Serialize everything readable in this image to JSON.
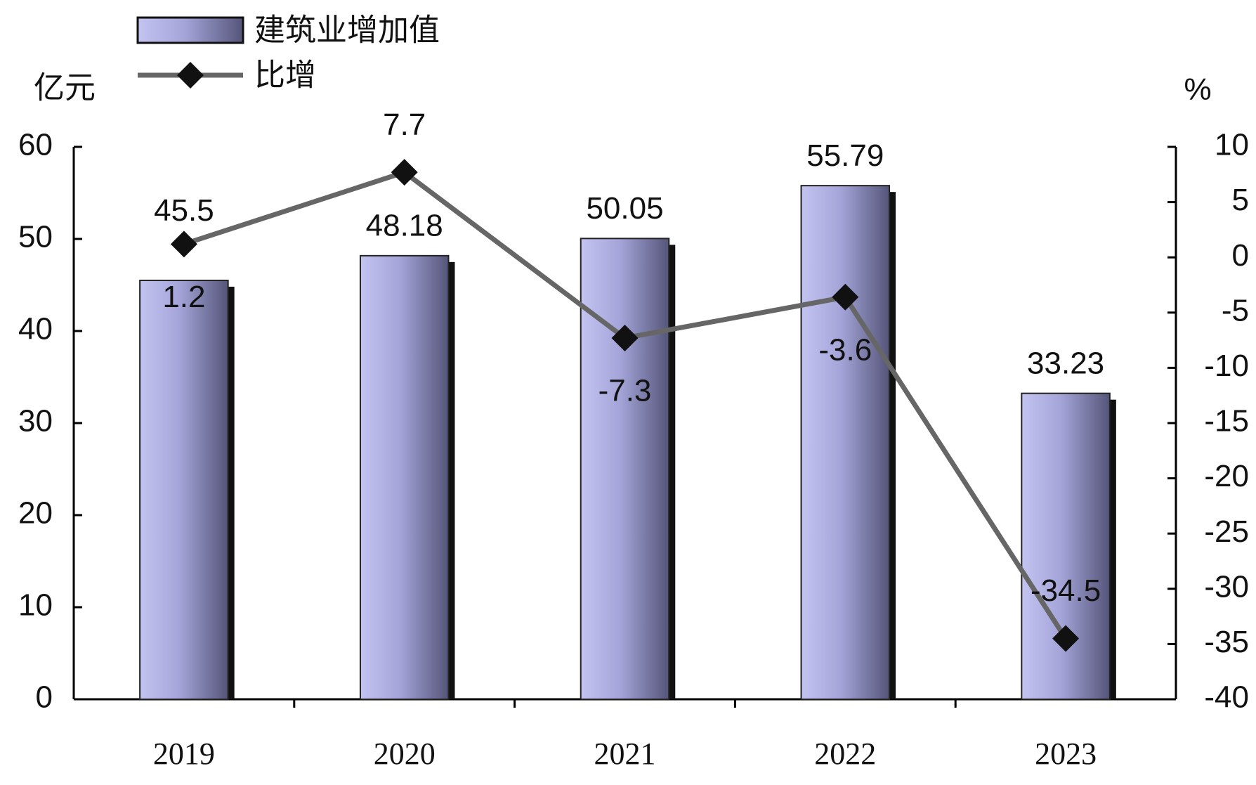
{
  "chart_data": {
    "type": "bar",
    "categories": [
      "2019",
      "2020",
      "2021",
      "2022",
      "2023"
    ],
    "y_label": "亿元",
    "y2_label": "%",
    "ylim": [
      0,
      60
    ],
    "yticks": [
      0,
      10,
      20,
      30,
      40,
      50,
      60
    ],
    "y2lim": [
      -40,
      10
    ],
    "y2ticks": [
      -40,
      -35,
      -30,
      -25,
      -20,
      -15,
      -10,
      -5,
      0,
      5,
      10
    ],
    "series": [
      {
        "name": "建筑业增加值",
        "type": "bar",
        "color": "#a9a9e0",
        "values": [
          45.5,
          48.18,
          50.05,
          55.79,
          33.23
        ]
      },
      {
        "name": "比增",
        "type": "line",
        "axis": "y2",
        "color": "#666666",
        "values": [
          1.2,
          7.7,
          -7.3,
          -3.6,
          -34.5
        ]
      }
    ]
  }
}
